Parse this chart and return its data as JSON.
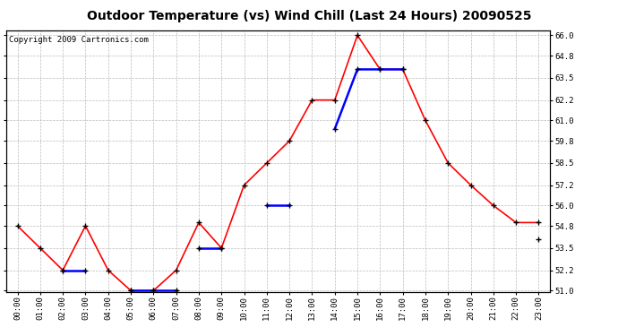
{
  "title": "Outdoor Temperature (vs) Wind Chill (Last 24 Hours) 20090525",
  "copyright": "Copyright 2009 Cartronics.com",
  "x_labels": [
    "00:00",
    "01:00",
    "02:00",
    "03:00",
    "04:00",
    "05:00",
    "06:00",
    "07:00",
    "08:00",
    "09:00",
    "10:00",
    "11:00",
    "12:00",
    "13:00",
    "14:00",
    "15:00",
    "16:00",
    "17:00",
    "18:00",
    "19:00",
    "20:00",
    "21:00",
    "22:00",
    "23:00"
  ],
  "temp": [
    54.8,
    53.5,
    52.2,
    54.8,
    52.2,
    51.0,
    51.0,
    52.2,
    55.0,
    53.5,
    57.2,
    58.5,
    59.8,
    62.2,
    62.2,
    66.0,
    64.0,
    64.0,
    61.0,
    58.5,
    57.2,
    56.0,
    55.0,
    55.0
  ],
  "wind_chill_segments": [
    [
      [
        2,
        52.2
      ],
      [
        3,
        52.2
      ]
    ],
    [
      [
        5,
        51.0
      ],
      [
        6,
        51.0
      ],
      [
        7,
        51.0
      ]
    ],
    [
      [
        8,
        53.5
      ],
      [
        9,
        53.5
      ]
    ],
    [
      [
        11,
        56.0
      ],
      [
        12,
        56.0
      ]
    ],
    [
      [
        14,
        60.5
      ],
      [
        15,
        64.0
      ],
      [
        16,
        64.0
      ],
      [
        17,
        64.0
      ]
    ],
    [
      [
        23,
        54.0
      ]
    ]
  ],
  "ylim_min": 51.0,
  "ylim_max": 66.0,
  "ytick_step": 1.3,
  "yticks": [
    51.0,
    52.2,
    53.5,
    54.8,
    56.0,
    57.2,
    58.5,
    59.8,
    61.0,
    62.2,
    63.5,
    64.8,
    66.0
  ],
  "temp_color": "#ff0000",
  "wind_chill_color": "#0000ff",
  "bg_color": "#ffffff",
  "grid_color": "#bbbbbb",
  "title_fontsize": 10,
  "copyright_fontsize": 6.5
}
